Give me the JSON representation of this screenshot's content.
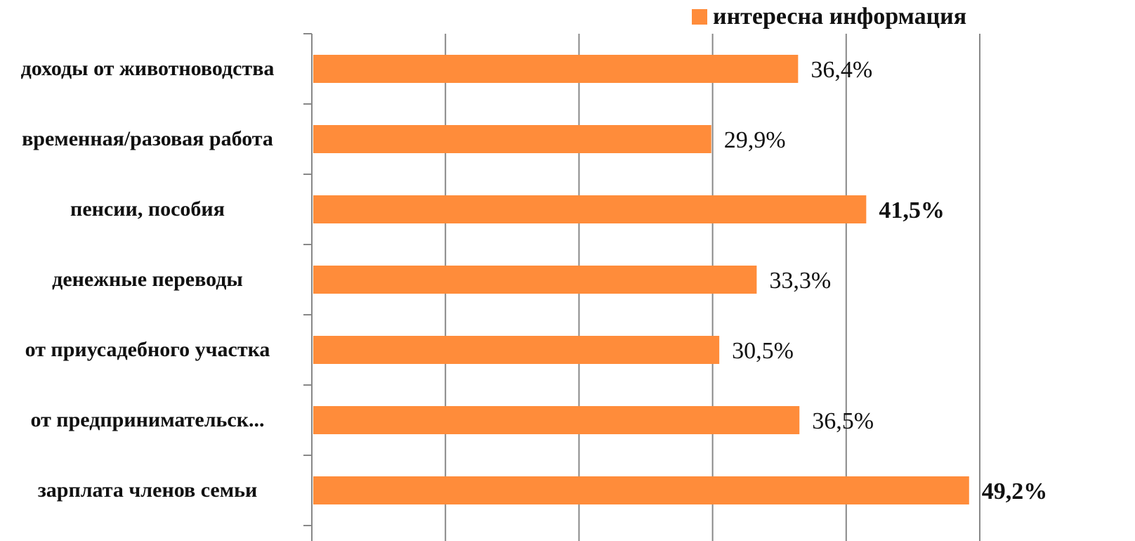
{
  "chart_data": {
    "type": "bar",
    "orientation": "horizontal",
    "categories": [
      "доходы от животноводства",
      "временная/разовая работа",
      "пенсии, пособия",
      "денежные переводы",
      "от приусадебного участка",
      "от предпринимательск...",
      "зарплата членов семьи"
    ],
    "series": [
      {
        "name": "интересна информация",
        "color": "#ff8c3a",
        "values": [
          36.4,
          29.9,
          41.5,
          33.3,
          30.5,
          36.5,
          49.2
        ],
        "value_labels": [
          "36,4%",
          "29,9%",
          "41,5%",
          "33,3%",
          "30,5%",
          "36,5%",
          "49,2%"
        ],
        "value_label_weights": [
          "normal",
          "normal",
          "bold",
          "normal",
          "normal",
          "normal",
          "bold"
        ]
      }
    ],
    "xlim": [
      0,
      50
    ],
    "xticks": [
      0,
      10,
      20,
      30,
      40,
      50
    ],
    "grid": true,
    "legend": "top-right"
  }
}
